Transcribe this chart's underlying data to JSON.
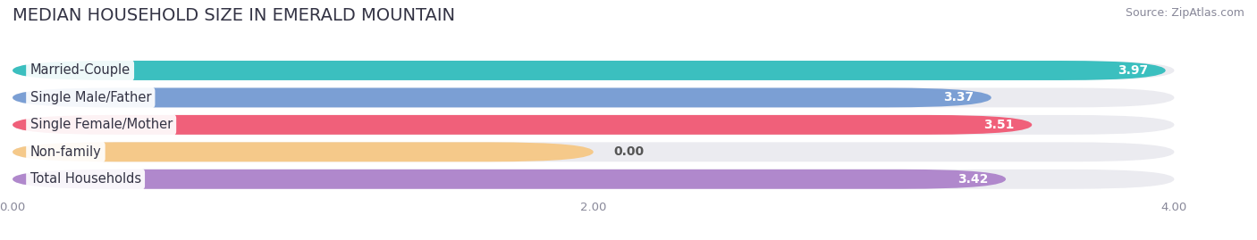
{
  "title": "MEDIAN HOUSEHOLD SIZE IN EMERALD MOUNTAIN",
  "source": "Source: ZipAtlas.com",
  "categories": [
    "Married-Couple",
    "Single Male/Father",
    "Single Female/Mother",
    "Non-family",
    "Total Households"
  ],
  "values": [
    3.97,
    3.37,
    3.51,
    0.0,
    3.42
  ],
  "bar_colors": [
    "#3bbfbf",
    "#7b9fd4",
    "#f0607a",
    "#f5c98a",
    "#b088cc"
  ],
  "xlim": [
    0,
    4.22
  ],
  "xlim_display": [
    0,
    4.0
  ],
  "xticks": [
    0.0,
    2.0,
    4.0
  ],
  "xtick_labels": [
    "0.00",
    "2.00",
    "4.00"
  ],
  "background_color": "#ffffff",
  "bar_background_color": "#ebebf0",
  "title_fontsize": 14,
  "label_fontsize": 10.5,
  "value_fontsize": 10,
  "source_fontsize": 9,
  "nonfamily_bar_width": 2.0
}
